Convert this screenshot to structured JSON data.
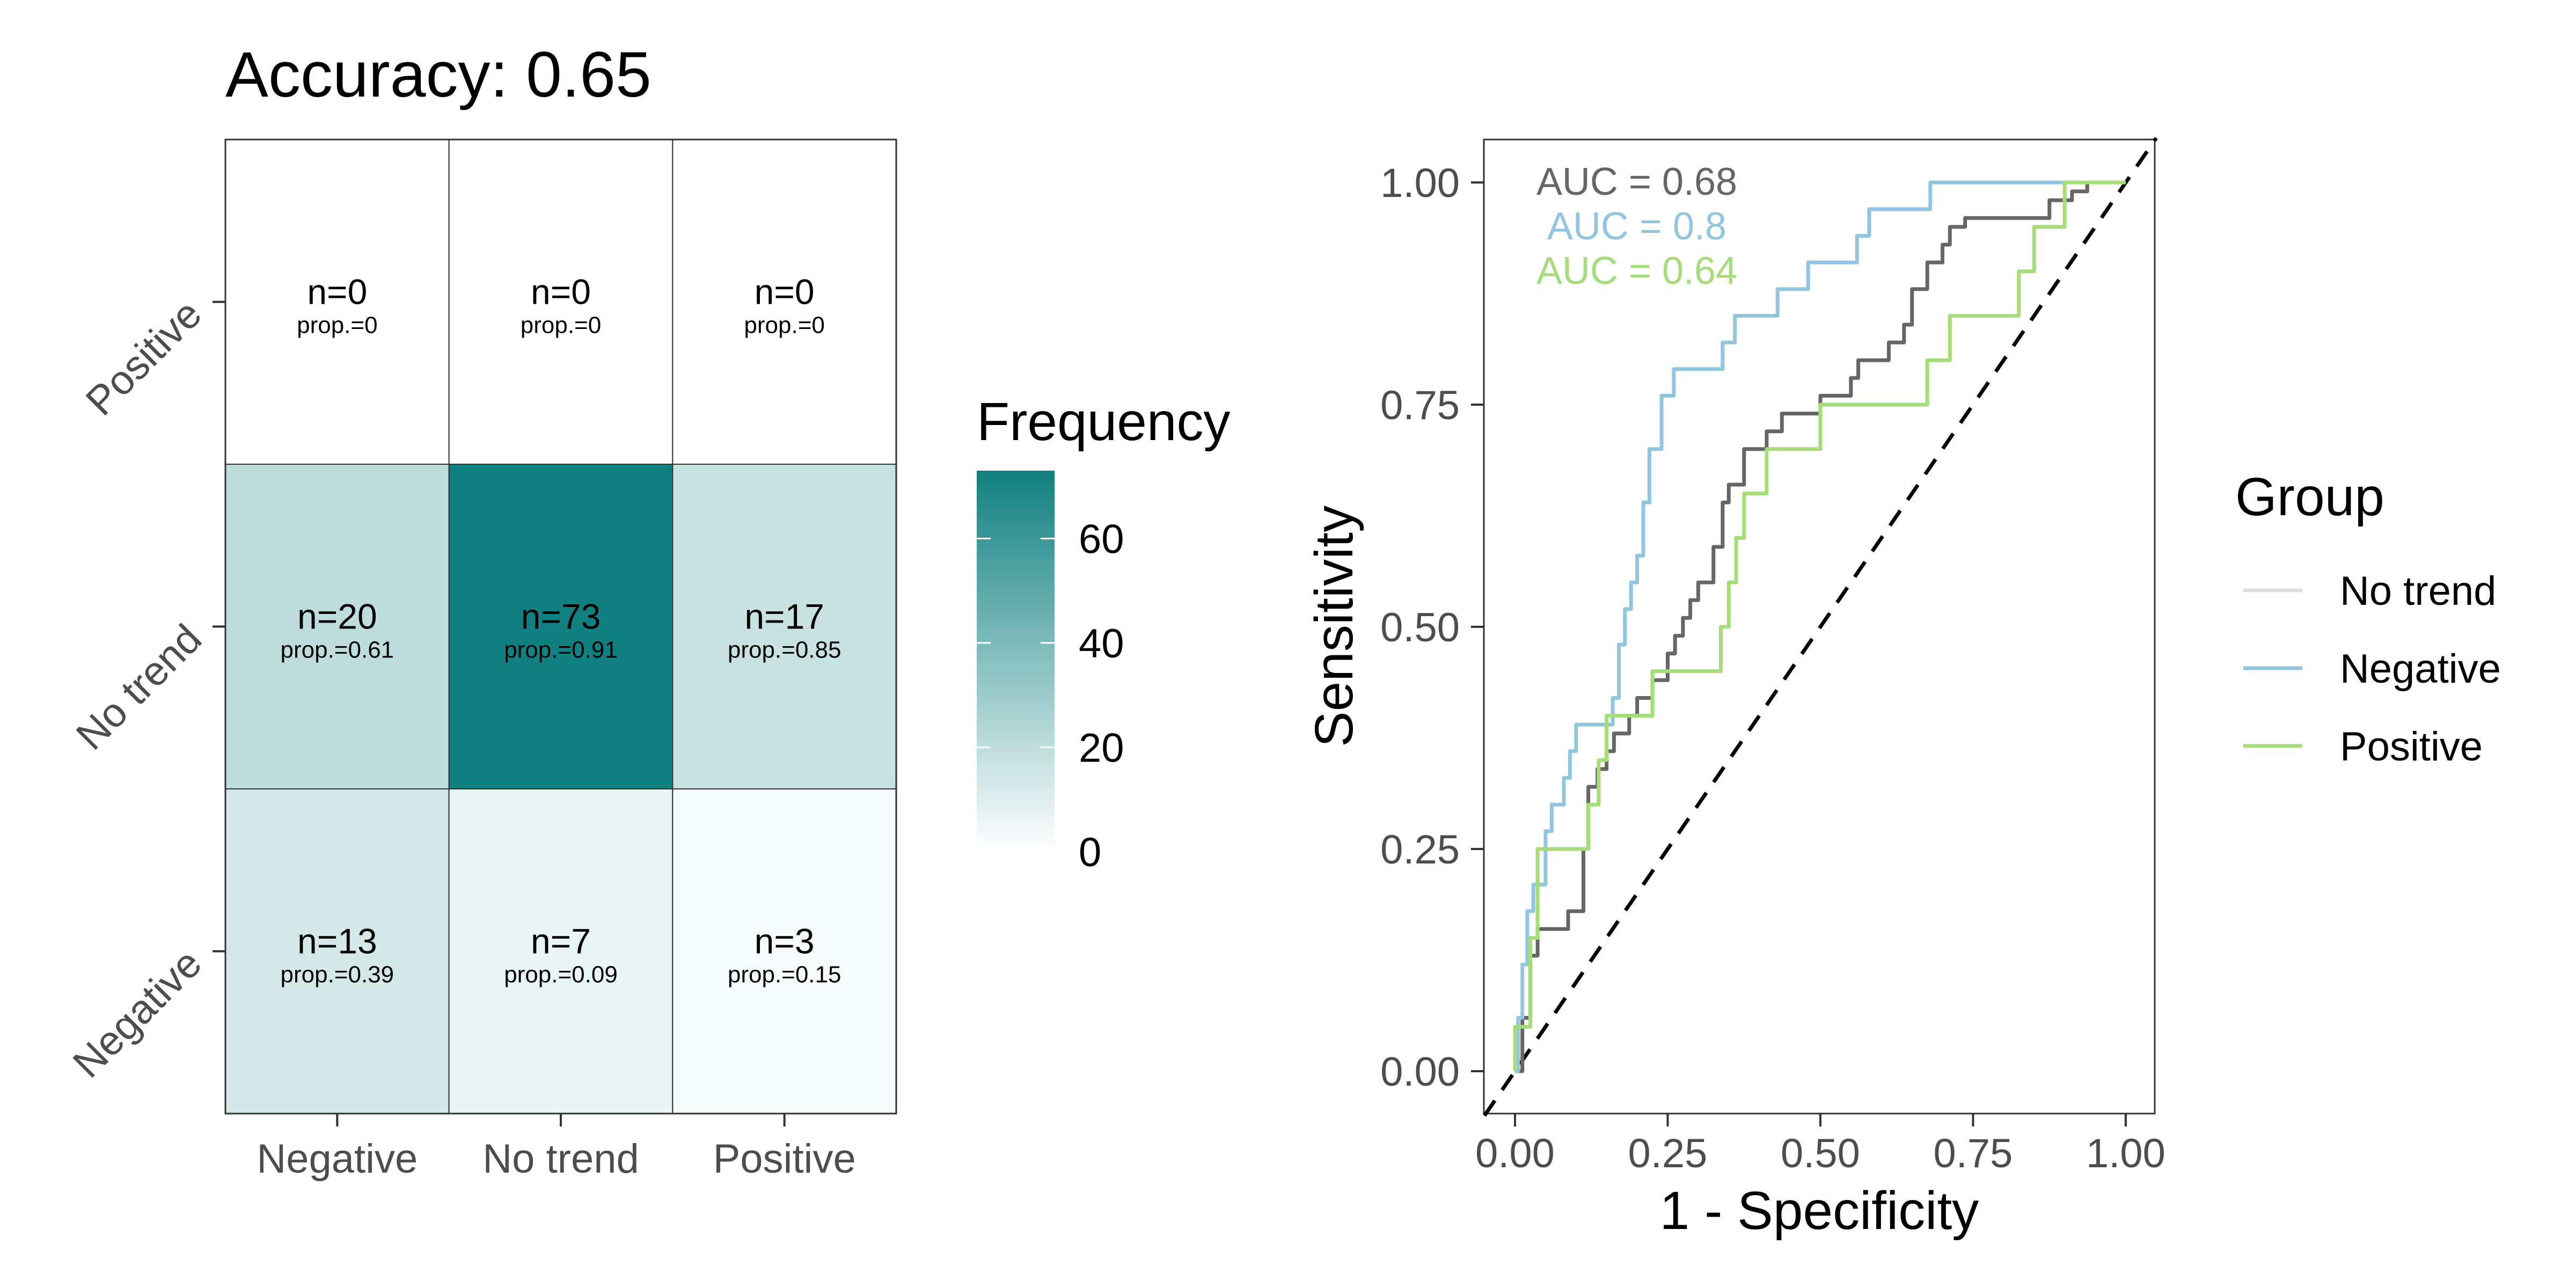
{
  "chart_data": [
    {
      "type": "heatmap",
      "title": "Accuracy: 0.65",
      "x_categories": [
        "Negative",
        "No trend",
        "Positive"
      ],
      "y_categories": [
        "Negative",
        "No trend",
        "Positive"
      ],
      "cells": [
        {
          "x": "Negative",
          "y": "Positive",
          "n_label": "n=0",
          "prop_label": "prop.=0",
          "value": 0
        },
        {
          "x": "No trend",
          "y": "Positive",
          "n_label": "n=0",
          "prop_label": "prop.=0",
          "value": 0
        },
        {
          "x": "Positive",
          "y": "Positive",
          "n_label": "n=0",
          "prop_label": "prop.=0",
          "value": 0
        },
        {
          "x": "Negative",
          "y": "No trend",
          "n_label": "n=20",
          "prop_label": "prop.=0.61",
          "value": 20
        },
        {
          "x": "No trend",
          "y": "No trend",
          "n_label": "n=73",
          "prop_label": "prop.=0.91",
          "value": 73
        },
        {
          "x": "Positive",
          "y": "No trend",
          "n_label": "n=17",
          "prop_label": "prop.=0.85",
          "value": 17
        },
        {
          "x": "Negative",
          "y": "Negative",
          "n_label": "n=13",
          "prop_label": "prop.=0.39",
          "value": 13
        },
        {
          "x": "No trend",
          "y": "Negative",
          "n_label": "n=7",
          "prop_label": "prop.=0.09",
          "value": 7
        },
        {
          "x": "Positive",
          "y": "Negative",
          "n_label": "n=3",
          "prop_label": "prop.=0.15",
          "value": 3
        }
      ],
      "colorbar": {
        "title": "Frequency",
        "range": [
          0,
          73
        ],
        "ticks": [
          0,
          20,
          40,
          60
        ],
        "color_low": "#ffffff",
        "color_high": "#118080"
      }
    },
    {
      "type": "line",
      "xlabel": "1 - Specificity",
      "ylabel": "Sensitivity",
      "xlim": [
        0,
        1
      ],
      "ylim": [
        0,
        1
      ],
      "xticks": [
        "0.00",
        "0.25",
        "0.50",
        "0.75",
        "1.00"
      ],
      "yticks": [
        "0.00",
        "0.25",
        "0.50",
        "0.75",
        "1.00"
      ],
      "diagonal_reference": true,
      "annotations": [
        {
          "text": "AUC = 0.68",
          "color": "#666666"
        },
        {
          "text": "AUC = 0.8",
          "color": "#92c5de"
        },
        {
          "text": "AUC = 0.64",
          "color": "#a6dc7a"
        }
      ],
      "legend": {
        "title": "Group",
        "position": "right"
      },
      "series": [
        {
          "name": "No trend",
          "color": "#666666",
          "legend_color": "#dddddd",
          "points": [
            [
              0,
              0
            ],
            [
              0.012,
              0
            ],
            [
              0.012,
              0.04
            ],
            [
              0.012,
              0.06
            ],
            [
              0.025,
              0.06
            ],
            [
              0.025,
              0.1
            ],
            [
              0.025,
              0.13
            ],
            [
              0.037,
              0.13
            ],
            [
              0.037,
              0.16
            ],
            [
              0.087,
              0.16
            ],
            [
              0.087,
              0.18
            ],
            [
              0.112,
              0.18
            ],
            [
              0.112,
              0.25
            ],
            [
              0.12,
              0.25
            ],
            [
              0.12,
              0.32
            ],
            [
              0.135,
              0.32
            ],
            [
              0.135,
              0.34
            ],
            [
              0.15,
              0.34
            ],
            [
              0.15,
              0.36
            ],
            [
              0.162,
              0.36
            ],
            [
              0.162,
              0.38
            ],
            [
              0.187,
              0.38
            ],
            [
              0.187,
              0.4
            ],
            [
              0.2,
              0.4
            ],
            [
              0.2,
              0.42
            ],
            [
              0.225,
              0.42
            ],
            [
              0.225,
              0.44
            ],
            [
              0.25,
              0.44
            ],
            [
              0.25,
              0.47
            ],
            [
              0.262,
              0.47
            ],
            [
              0.262,
              0.49
            ],
            [
              0.275,
              0.49
            ],
            [
              0.275,
              0.51
            ],
            [
              0.287,
              0.51
            ],
            [
              0.287,
              0.53
            ],
            [
              0.3,
              0.53
            ],
            [
              0.3,
              0.55
            ],
            [
              0.325,
              0.55
            ],
            [
              0.325,
              0.59
            ],
            [
              0.34,
              0.59
            ],
            [
              0.34,
              0.64
            ],
            [
              0.35,
              0.64
            ],
            [
              0.35,
              0.66
            ],
            [
              0.375,
              0.66
            ],
            [
              0.375,
              0.7
            ],
            [
              0.412,
              0.7
            ],
            [
              0.412,
              0.72
            ],
            [
              0.437,
              0.72
            ],
            [
              0.437,
              0.74
            ],
            [
              0.5,
              0.74
            ],
            [
              0.5,
              0.76
            ],
            [
              0.55,
              0.76
            ],
            [
              0.55,
              0.78
            ],
            [
              0.562,
              0.78
            ],
            [
              0.562,
              0.8
            ],
            [
              0.612,
              0.8
            ],
            [
              0.612,
              0.82
            ],
            [
              0.637,
              0.82
            ],
            [
              0.637,
              0.84
            ],
            [
              0.65,
              0.84
            ],
            [
              0.65,
              0.88
            ],
            [
              0.675,
              0.88
            ],
            [
              0.675,
              0.91
            ],
            [
              0.7,
              0.91
            ],
            [
              0.7,
              0.93
            ],
            [
              0.712,
              0.93
            ],
            [
              0.712,
              0.95
            ],
            [
              0.737,
              0.95
            ],
            [
              0.737,
              0.96
            ],
            [
              0.875,
              0.96
            ],
            [
              0.875,
              0.98
            ],
            [
              0.912,
              0.98
            ],
            [
              0.912,
              0.99
            ],
            [
              0.937,
              0.99
            ],
            [
              0.937,
              1
            ],
            [
              1,
              1
            ]
          ]
        },
        {
          "name": "Negative",
          "color": "#92c5de",
          "legend_color": "#92c5de",
          "points": [
            [
              0,
              0
            ],
            [
              0.005,
              0
            ],
            [
              0.005,
              0.06
            ],
            [
              0.012,
              0.06
            ],
            [
              0.012,
              0.12
            ],
            [
              0.02,
              0.12
            ],
            [
              0.02,
              0.18
            ],
            [
              0.03,
              0.18
            ],
            [
              0.03,
              0.21
            ],
            [
              0.05,
              0.21
            ],
            [
              0.05,
              0.27
            ],
            [
              0.06,
              0.27
            ],
            [
              0.06,
              0.3
            ],
            [
              0.08,
              0.3
            ],
            [
              0.08,
              0.33
            ],
            [
              0.09,
              0.33
            ],
            [
              0.09,
              0.36
            ],
            [
              0.1,
              0.36
            ],
            [
              0.1,
              0.39
            ],
            [
              0.16,
              0.39
            ],
            [
              0.16,
              0.42
            ],
            [
              0.17,
              0.42
            ],
            [
              0.17,
              0.48
            ],
            [
              0.18,
              0.48
            ],
            [
              0.18,
              0.52
            ],
            [
              0.19,
              0.52
            ],
            [
              0.19,
              0.55
            ],
            [
              0.2,
              0.55
            ],
            [
              0.2,
              0.58
            ],
            [
              0.21,
              0.58
            ],
            [
              0.21,
              0.64
            ],
            [
              0.22,
              0.64
            ],
            [
              0.22,
              0.7
            ],
            [
              0.24,
              0.7
            ],
            [
              0.24,
              0.76
            ],
            [
              0.26,
              0.76
            ],
            [
              0.26,
              0.79
            ],
            [
              0.34,
              0.79
            ],
            [
              0.34,
              0.82
            ],
            [
              0.36,
              0.82
            ],
            [
              0.36,
              0.85
            ],
            [
              0.43,
              0.85
            ],
            [
              0.43,
              0.88
            ],
            [
              0.48,
              0.88
            ],
            [
              0.48,
              0.91
            ],
            [
              0.56,
              0.91
            ],
            [
              0.56,
              0.94
            ],
            [
              0.58,
              0.94
            ],
            [
              0.58,
              0.97
            ],
            [
              0.68,
              0.97
            ],
            [
              0.68,
              1
            ],
            [
              1,
              1
            ]
          ]
        },
        {
          "name": "Positive",
          "color": "#a6dc7a",
          "legend_color": "#a6dc7a",
          "points": [
            [
              0,
              0
            ],
            [
              0,
              0.05
            ],
            [
              0.025,
              0.05
            ],
            [
              0.025,
              0.15
            ],
            [
              0.037,
              0.15
            ],
            [
              0.037,
              0.25
            ],
            [
              0.12,
              0.25
            ],
            [
              0.12,
              0.3
            ],
            [
              0.137,
              0.3
            ],
            [
              0.137,
              0.35
            ],
            [
              0.15,
              0.35
            ],
            [
              0.15,
              0.4
            ],
            [
              0.225,
              0.4
            ],
            [
              0.225,
              0.45
            ],
            [
              0.337,
              0.45
            ],
            [
              0.337,
              0.5
            ],
            [
              0.35,
              0.5
            ],
            [
              0.35,
              0.55
            ],
            [
              0.362,
              0.55
            ],
            [
              0.362,
              0.6
            ],
            [
              0.375,
              0.6
            ],
            [
              0.375,
              0.65
            ],
            [
              0.412,
              0.65
            ],
            [
              0.412,
              0.7
            ],
            [
              0.5,
              0.7
            ],
            [
              0.5,
              0.75
            ],
            [
              0.675,
              0.75
            ],
            [
              0.675,
              0.8
            ],
            [
              0.712,
              0.8
            ],
            [
              0.712,
              0.85
            ],
            [
              0.825,
              0.85
            ],
            [
              0.825,
              0.9
            ],
            [
              0.85,
              0.9
            ],
            [
              0.85,
              0.95
            ],
            [
              0.9,
              0.95
            ],
            [
              0.9,
              1
            ],
            [
              1,
              1
            ]
          ]
        }
      ]
    }
  ]
}
